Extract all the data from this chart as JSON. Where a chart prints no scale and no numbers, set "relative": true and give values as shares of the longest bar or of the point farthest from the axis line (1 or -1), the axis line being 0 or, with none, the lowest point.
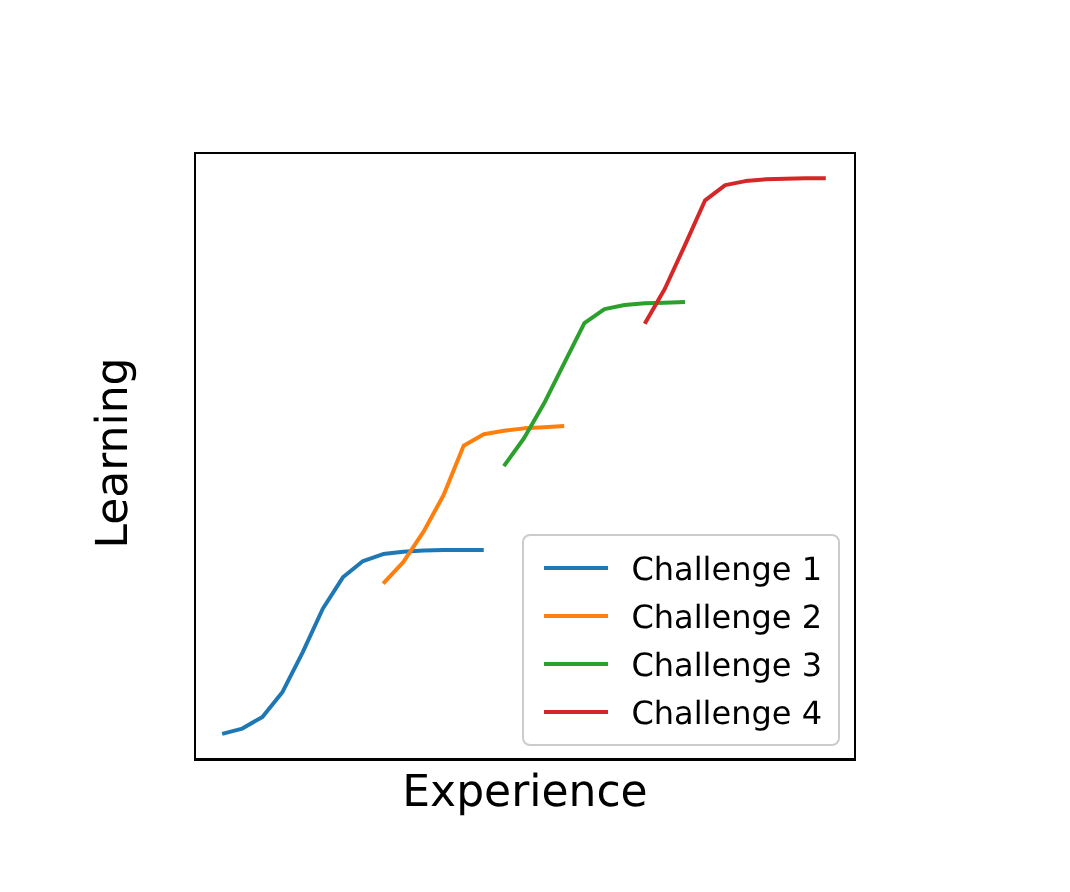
{
  "chart_data": {
    "type": "line",
    "relative": true,
    "xlabel": "Experience",
    "ylabel": "Learning",
    "tick_labels": false,
    "legend": "bottom right",
    "grid": false,
    "marker": "none",
    "categories": [
      null,
      null,
      null,
      null,
      null,
      null,
      null,
      null,
      null,
      null,
      null,
      null,
      null,
      null,
      null,
      null,
      null,
      null,
      null,
      null,
      null,
      null,
      null,
      null,
      null,
      null,
      null,
      null,
      null,
      null,
      null
    ],
    "series": [
      {
        "name": "Challenge 1",
        "color": "#1f77b4",
        "values": [
          0.045,
          0.054,
          0.074,
          0.117,
          0.185,
          0.26,
          0.314,
          0.342,
          0.354,
          0.358,
          0.36,
          0.361,
          0.361,
          0.361,
          null,
          null,
          null,
          null,
          null,
          null,
          null,
          null,
          null,
          null,
          null,
          null,
          null,
          null,
          null,
          null,
          null
        ]
      },
      {
        "name": "Challenge 2",
        "color": "#ff7f0e",
        "values": [
          null,
          null,
          null,
          null,
          null,
          null,
          null,
          null,
          0.303,
          0.34,
          0.392,
          0.455,
          0.54,
          0.56,
          0.566,
          0.57,
          0.572,
          0.574,
          null,
          null,
          null,
          null,
          null,
          null,
          null,
          null,
          null,
          null,
          null,
          null,
          null
        ]
      },
      {
        "name": "Challenge 3",
        "color": "#2ca02c",
        "values": [
          null,
          null,
          null,
          null,
          null,
          null,
          null,
          null,
          null,
          null,
          null,
          null,
          null,
          null,
          0.505,
          0.553,
          0.613,
          0.682,
          0.751,
          0.775,
          0.782,
          0.785,
          0.786,
          0.787,
          null,
          null,
          null,
          null,
          null,
          null,
          null
        ]
      },
      {
        "name": "Challenge 4",
        "color": "#d62728",
        "values": [
          null,
          null,
          null,
          null,
          null,
          null,
          null,
          null,
          null,
          null,
          null,
          null,
          null,
          null,
          null,
          null,
          null,
          null,
          null,
          null,
          null,
          0.75,
          0.81,
          0.885,
          0.962,
          0.988,
          0.995,
          0.998,
          0.999,
          1,
          1
        ]
      }
    ]
  }
}
